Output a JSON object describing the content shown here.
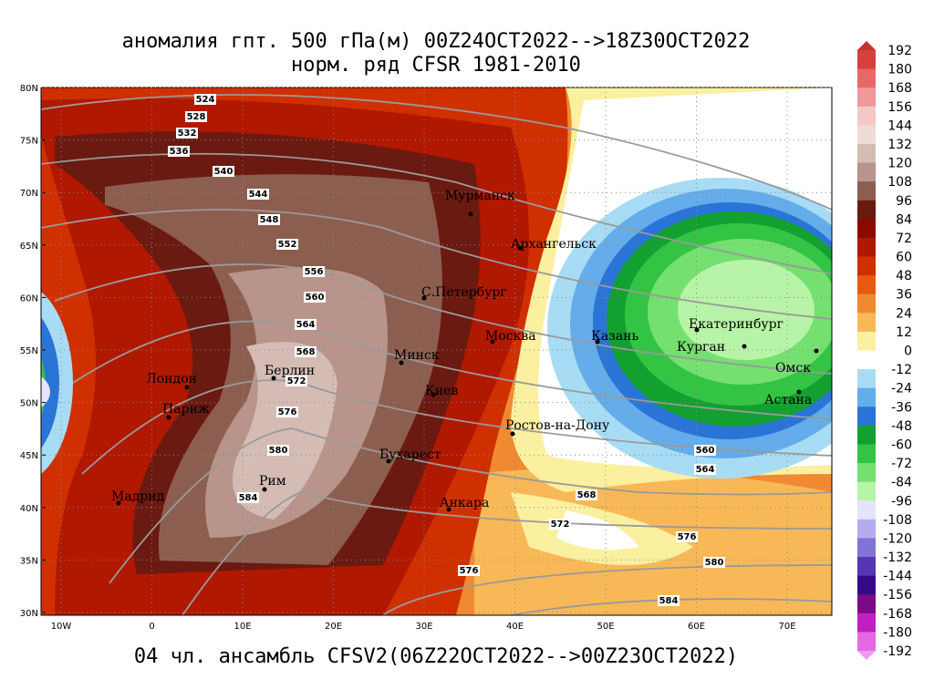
{
  "title": "аномалия гпт. 500 гПа(м) 00Z24OCT2022-->18Z30OCT2022",
  "subtitle": "норм. ряд CFSR 1981-2010",
  "footer": "04 чл. ансамбль CFSV2(06Z22OCT2022-->00Z23OCT2022)",
  "lat_labels": [
    "80N",
    "75N",
    "70N",
    "65N",
    "60N",
    "55N",
    "50N",
    "45N",
    "40N",
    "35N",
    "30N"
  ],
  "lon_labels": [
    "10W",
    "0",
    "10E",
    "20E",
    "30E",
    "40E",
    "50E",
    "60E",
    "70E"
  ],
  "cities": [
    "Мурманск",
    "Архангельск",
    "С.Петербург",
    "Москва",
    "Казань",
    "Екатеринбург",
    "Курган",
    "Омск",
    "Астана",
    "Минск",
    "Киев",
    "Берлин",
    "Лондон",
    "Париж",
    "Ростов-на-Дону",
    "Бухарест",
    "Рим",
    "Мадрид",
    "Анкара"
  ],
  "contour_labels": [
    524,
    528,
    532,
    536,
    540,
    544,
    548,
    552,
    556,
    560,
    564,
    568,
    572,
    576,
    580,
    584,
    560,
    564,
    568,
    572,
    576,
    580,
    584,
    576
  ],
  "colorbar": {
    "labels": [
      192,
      180,
      168,
      156,
      144,
      132,
      120,
      108,
      96,
      84,
      72,
      60,
      48,
      36,
      24,
      12,
      0,
      -12,
      -24,
      -36,
      -48,
      -60,
      -72,
      -84,
      -96,
      -108,
      -120,
      -132,
      -144,
      -156,
      -168,
      -180,
      -192
    ],
    "colors": [
      "#c83030",
      "#d84040",
      "#e86868",
      "#f09898",
      "#f5c8c8",
      "#ecdcd8",
      "#d4bcb4",
      "#b8948a",
      "#8c5e50",
      "#6a1a10",
      "#8b0a00",
      "#b01800",
      "#d03000",
      "#e85a10",
      "#f08a30",
      "#f8b858",
      "#faf0a0",
      "#ffffff",
      "#a8dcf4",
      "#64acea",
      "#2a74d8",
      "#12a030",
      "#34c444",
      "#74e070",
      "#b8f4a8",
      "#e4e4fa",
      "#b4acec",
      "#8274d4",
      "#5636b4",
      "#340a88",
      "#7c0a86",
      "#c020c0",
      "#e468e4",
      "#f498f4"
    ]
  }
}
